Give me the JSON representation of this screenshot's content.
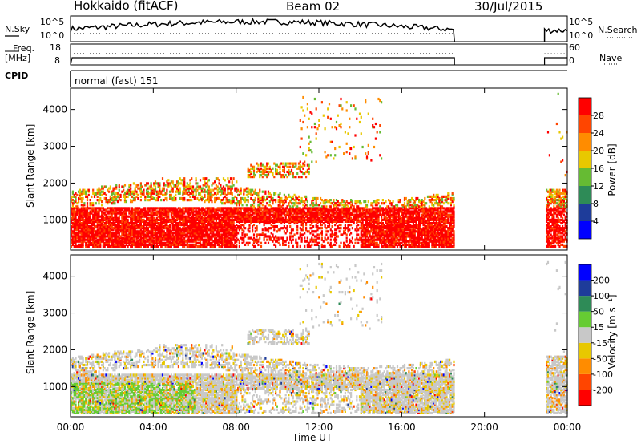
{
  "header": {
    "station": "Hokkaido (fitACF)",
    "beam": "Beam 02",
    "date": "30/Jul/2015"
  },
  "sky_panel": {
    "left_label": "N.Sky",
    "right_label": "N.Search",
    "left_ticks": [
      "10^5",
      "10^0"
    ],
    "right_ticks": [
      "10^5",
      "10^0"
    ]
  },
  "freq_panel": {
    "left_label": "Freq.",
    "left_unit": "[MHz]",
    "right_label": "Nave",
    "left_ticks": [
      "18",
      "8"
    ],
    "right_ticks": [
      "60",
      "0"
    ]
  },
  "cpid": {
    "label": "CPID",
    "value": "normal (fast) 151"
  },
  "colors": {
    "power": [
      "#0000ff",
      "#1e3c9a",
      "#2e8b57",
      "#66bb33",
      "#e8c800",
      "#ff8c00",
      "#ff4500",
      "#ff0000"
    ],
    "velocity": [
      "#ff0000",
      "#ff4500",
      "#ff8c00",
      "#e8c800",
      "#c8c8c8",
      "#66cc33",
      "#2e8b57",
      "#1e3c9a",
      "#0000ff"
    ]
  },
  "chart_data": [
    {
      "type": "heatmap",
      "name": "power",
      "ylabel": "Slant Range [km]",
      "ylim": [
        180,
        4580
      ],
      "yticks": [
        "1000",
        "2000",
        "3000",
        "4000"
      ],
      "ytick_values": [
        1000,
        2000,
        3000,
        4000
      ],
      "colorbar_label": "Power [dB]",
      "colorbar_ticks": [
        "4",
        "8",
        "12",
        "16",
        "20",
        "24",
        "28"
      ],
      "colorbar_range": [
        0,
        32
      ]
    },
    {
      "type": "heatmap",
      "name": "velocity",
      "ylabel": "Slant Range [km]",
      "ylim": [
        180,
        4580
      ],
      "yticks": [
        "1000",
        "2000",
        "3000",
        "4000"
      ],
      "ytick_values": [
        1000,
        2000,
        3000,
        4000
      ],
      "colorbar_label": "Velocity [m s⁻¹]",
      "colorbar_ticks": [
        "-200",
        "-100",
        "-50",
        "-15",
        "15",
        "50",
        "100",
        "200"
      ]
    }
  ],
  "x_axis": {
    "xlabel": "Time UT",
    "ticks": [
      "00:00",
      "04:00",
      "08:00",
      "12:00",
      "16:00",
      "20:00",
      "00:00"
    ],
    "tick_hours": [
      0,
      4,
      8,
      12,
      16,
      20,
      24
    ],
    "xlim_hours": [
      0,
      24
    ],
    "data_gaps_hours": [
      [
        18.55,
        22.9
      ]
    ]
  }
}
